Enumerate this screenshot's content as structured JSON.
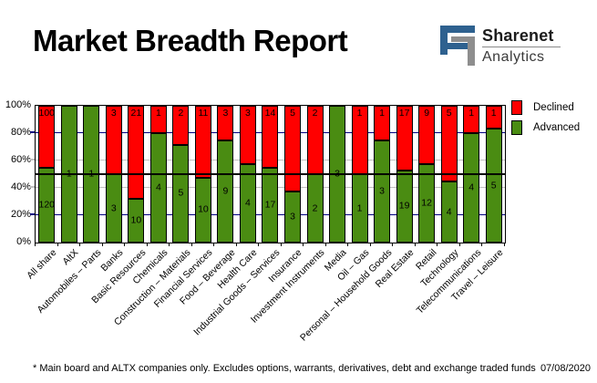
{
  "title": "Market Breadth Report",
  "logo": {
    "icon": "sharenet-logo",
    "brand": "Sharenet",
    "sub": "Analytics",
    "blue": "#2E618F",
    "gray": "#8E8E8E"
  },
  "footnote": {
    "text": "* Main board and ALTX companies only. Excludes options, warrants, derivatives, debt and exchange traded funds",
    "date": "07/08/2020"
  },
  "chart_data": {
    "type": "bar",
    "stacked": true,
    "percent_stacked": true,
    "title": "",
    "xlabel": "",
    "ylabel": "",
    "ylim": [
      0,
      100
    ],
    "y_ticks": [
      {
        "value": 100,
        "label": "100%"
      },
      {
        "value": 80,
        "label": "80%"
      },
      {
        "value": 60,
        "label": "60%"
      },
      {
        "value": 40,
        "label": "40%"
      },
      {
        "value": 20,
        "label": "20%"
      },
      {
        "value": 0,
        "label": "0%"
      }
    ],
    "gridlines": [
      {
        "value": 80,
        "color": "#000080"
      },
      {
        "value": 60,
        "color": "#C0C0C0"
      },
      {
        "value": 40,
        "color": "#C0C0C0"
      },
      {
        "value": 20,
        "color": "#000080"
      }
    ],
    "reference_line": {
      "value": 50,
      "color": "#000000"
    },
    "legend_position": "top-right",
    "categories": [
      "All share",
      "AltX",
      "Automobiles – Parts",
      "Banks",
      "Basic Resources",
      "Chemicals",
      "Construction – Materials",
      "Financial Services",
      "Food – Beverage",
      "Health Care",
      "Industrial Goods – Services",
      "Insurance",
      "Investment Instruments",
      "Media",
      "Oil – Gas",
      "Personal – Household Goods",
      "Real Estate",
      "Retail",
      "Technology",
      "Telecommunications",
      "Travel – Leisure"
    ],
    "series": [
      {
        "name": "Declined",
        "color": "#FF0000",
        "values": [
          100,
          0,
          0,
          3,
          21,
          1,
          2,
          11,
          3,
          3,
          14,
          5,
          2,
          0,
          1,
          1,
          17,
          9,
          5,
          1,
          1
        ]
      },
      {
        "name": "Advanced",
        "color": "#4A8C12",
        "values": [
          120,
          1,
          1,
          3,
          10,
          4,
          5,
          10,
          9,
          4,
          17,
          3,
          2,
          3,
          1,
          3,
          19,
          12,
          4,
          4,
          5
        ]
      }
    ]
  }
}
